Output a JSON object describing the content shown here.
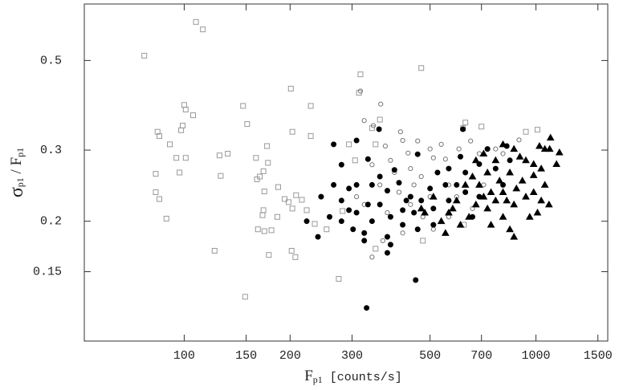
{
  "chart_data": {
    "type": "scatter",
    "xlabel": {
      "main": "F",
      "sub": "p1",
      "rest": " [counts/s]"
    },
    "ylabel": {
      "main": "σ",
      "sub": "p1",
      "mid": " / F",
      "sub2": "p1"
    },
    "log_x": true,
    "log_y": true,
    "xlim": [
      52,
      1600
    ],
    "ylim": [
      0.101,
      0.69
    ],
    "xticks": [
      100,
      150,
      200,
      300,
      500,
      700,
      1000,
      1500
    ],
    "yticks": [
      0.15,
      0.2,
      0.3,
      0.5
    ],
    "series": [
      {
        "marker": "square",
        "color": "#999999",
        "filled": false,
        "x": [
          77,
          108,
          113,
          100,
          101,
          106,
          99,
          98,
          84,
          85,
          91,
          95,
          101,
          97,
          83,
          83,
          85,
          89,
          122,
          126,
          133,
          127,
          147,
          151,
          160,
          161,
          164,
          168,
          173,
          172,
          169,
          168,
          167,
          162,
          169,
          177,
          174,
          149,
          184,
          185,
          193,
          198,
          201,
          203,
          203,
          202,
          207,
          208,
          216,
          229,
          229,
          223,
          235,
          254,
          282,
          275,
          294,
          306,
          317,
          314,
          342,
          350,
          360,
          350,
          472,
          477,
          624,
          700,
          936,
          1010,
          620,
          630
        ],
        "values": [
          0.514,
          0.623,
          0.597,
          0.388,
          0.378,
          0.366,
          0.345,
          0.336,
          0.333,
          0.325,
          0.31,
          0.287,
          0.287,
          0.264,
          0.262,
          0.236,
          0.227,
          0.203,
          0.169,
          0.291,
          0.294,
          0.259,
          0.386,
          0.348,
          0.287,
          0.254,
          0.258,
          0.266,
          0.279,
          0.307,
          0.237,
          0.213,
          0.207,
          0.191,
          0.189,
          0.19,
          0.165,
          0.13,
          0.205,
          0.243,
          0.227,
          0.223,
          0.426,
          0.333,
          0.215,
          0.169,
          0.163,
          0.232,
          0.226,
          0.386,
          0.325,
          0.213,
          0.197,
          0.191,
          0.212,
          0.144,
          0.31,
          0.283,
          0.462,
          0.416,
          0.34,
          0.31,
          0.357,
          0.171,
          0.479,
          0.179,
          0.196,
          0.343,
          0.333,
          0.337,
          0.34,
          0.351
        ]
      },
      {
        "marker": "circle",
        "color": "#777777",
        "filled": false,
        "x": [
          317,
          362,
          325,
          345,
          373,
          412,
          418,
          433,
          461,
          500,
          538,
          511,
          553,
          604,
          652,
          690,
          768,
          806,
          895,
          386,
          396,
          440,
          472,
          565,
          595,
          408,
          440,
          477,
          511,
          565,
          342,
          360,
          325,
          309,
          378,
          418,
          450,
          500,
          660,
          710,
          367,
          342
        ],
        "values": [
          0.42,
          0.39,
          0.355,
          0.345,
          0.307,
          0.333,
          0.317,
          0.295,
          0.316,
          0.302,
          0.31,
          0.287,
          0.285,
          0.302,
          0.316,
          0.294,
          0.302,
          0.294,
          0.318,
          0.283,
          0.264,
          0.27,
          0.258,
          0.246,
          0.23,
          0.236,
          0.22,
          0.205,
          0.191,
          0.205,
          0.276,
          0.246,
          0.22,
          0.23,
          0.21,
          0.187,
          0.246,
          0.23,
          0.215,
          0.246,
          0.179,
          0.163
        ]
      },
      {
        "marker": "circle",
        "color": "#000000",
        "filled": true,
        "x": [
          330,
          455,
          358,
          620,
          309,
          266,
          280,
          333,
          396,
          461,
          525,
          553,
          240,
          259,
          280,
          294,
          309,
          302,
          325,
          342,
          360,
          386,
          418,
          378,
          378,
          325,
          280,
          294,
          342,
          360,
          378,
          408,
          440,
          472,
          500,
          511,
          565,
          595,
          630,
          690,
          728,
          768,
          806,
          843,
          826,
          630,
          690,
          660,
          511,
          461,
          333,
          309,
          223,
          245,
          266,
          428,
          450,
          565,
          610,
          386,
          418
        ],
        "values": [
          0.122,
          0.143,
          0.338,
          0.338,
          0.317,
          0.31,
          0.276,
          0.285,
          0.268,
          0.293,
          0.264,
          0.246,
          0.183,
          0.205,
          0.2,
          0.213,
          0.21,
          0.191,
          0.187,
          0.2,
          0.22,
          0.205,
          0.196,
          0.183,
          0.167,
          0.179,
          0.225,
          0.241,
          0.246,
          0.258,
          0.238,
          0.249,
          0.23,
          0.225,
          0.241,
          0.215,
          0.225,
          0.246,
          0.264,
          0.277,
          0.302,
          0.27,
          0.246,
          0.283,
          0.307,
          0.236,
          0.23,
          0.205,
          0.196,
          0.191,
          0.22,
          0.246,
          0.2,
          0.23,
          0.246,
          0.225,
          0.21,
          0.27,
          0.289,
          0.175,
          0.213
        ]
      },
      {
        "marker": "triangle",
        "color": "#000000",
        "filled": true,
        "x": [
          1094,
          1060,
          1023,
          1100,
          1166,
          1144,
          1035,
          985,
          936,
          866,
          806,
          900,
          768,
          728,
          843,
          915,
          985,
          1060,
          1089,
          1010,
          936,
          866,
          806,
          768,
          728,
          690,
          660,
          630,
          595,
          565,
          538,
          511,
          472,
          710,
          675,
          645,
          610,
          580,
          806,
          745,
          843,
          866,
          553,
          483,
          985,
          880,
          1035,
          788,
          675,
          710,
          745,
          826,
          960
        ],
        "values": [
          0.302,
          0.302,
          0.307,
          0.322,
          0.296,
          0.277,
          0.27,
          0.26,
          0.283,
          0.302,
          0.31,
          0.289,
          0.283,
          0.264,
          0.264,
          0.252,
          0.236,
          0.246,
          0.22,
          0.21,
          0.23,
          0.22,
          0.236,
          0.225,
          0.215,
          0.246,
          0.258,
          0.246,
          0.225,
          0.21,
          0.2,
          0.23,
          0.215,
          0.23,
          0.22,
          0.205,
          0.196,
          0.215,
          0.205,
          0.196,
          0.191,
          0.183,
          0.187,
          0.21,
          0.277,
          0.241,
          0.225,
          0.252,
          0.283,
          0.294,
          0.236,
          0.225,
          0.205
        ]
      }
    ]
  }
}
